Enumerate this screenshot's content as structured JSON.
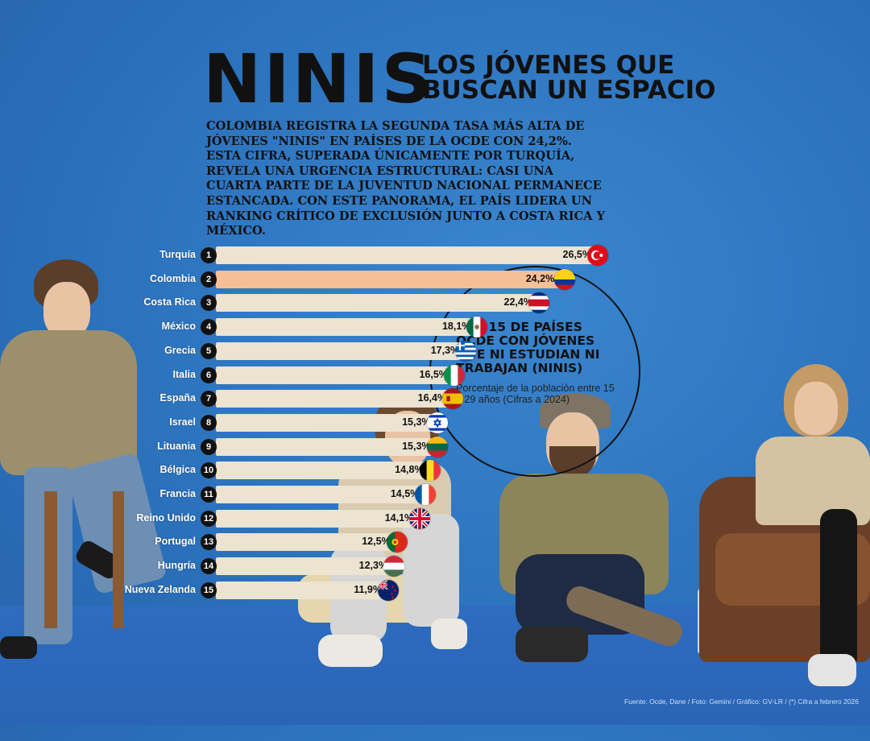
{
  "header": {
    "title": "NINIS",
    "subtitle": "LOS JÓVENES QUE\nBUSCAN UN ESPACIO",
    "intro": "COLOMBIA REGISTRA LA SEGUNDA TASA MÁS ALTA DE JÓVENES \"NINIS\" EN PAÍSES DE LA OCDE CON 24,2%. ESTA CIFRA, SUPERADA ÚNICAMENTE POR TURQUÍA, REVELA UNA URGENCIA ESTRUCTURAL: CASI UNA CUARTA PARTE DE LA JUVENTUD NACIONAL PERMANECE ESTANCADA. CON ESTE PANORAMA, EL PAÍS LIDERA UN RANKING CRÍTICO DE EXCLUSIÓN JUNTO A COSTA RICA Y MÉXICO."
  },
  "callout": {
    "title": "TOP 15 DE PAÍSES OCDE CON JÓVENES QUE NI ESTUDIAN NI TRABAJAN (NINIS)",
    "subtitle": "Porcentaje de la población entre 15 a 29 años (Cifras a 2024)"
  },
  "footer": "Fuente: Ocde, Dane / Foto: Gemini / Gráfico: GV-LR / (*) Cifra a febrero 2026",
  "colors": {
    "bar": "#ece3d0",
    "highlight": "#f7bf96",
    "background": "#2c72bd"
  },
  "chart_data": {
    "type": "bar",
    "orientation": "horizontal",
    "categories": [
      "Turquía",
      "Colombia",
      "Costa Rica",
      "México",
      "Grecia",
      "Italia",
      "España",
      "Israel",
      "Lituania",
      "Bélgica",
      "Francia",
      "Reino Unido",
      "Portugal",
      "Hungría",
      "Nueva Zelanda"
    ],
    "ranks": [
      "1",
      "2",
      "3",
      "4",
      "5",
      "6",
      "7",
      "8",
      "9",
      "10",
      "11",
      "12",
      "13",
      "14",
      "15"
    ],
    "values": [
      26.5,
      24.2,
      22.4,
      18.1,
      17.3,
      16.5,
      16.4,
      15.3,
      15.3,
      14.8,
      14.5,
      14.1,
      12.5,
      12.3,
      11.9
    ],
    "value_labels": [
      "26,5%",
      "24,2%*",
      "22,4%",
      "18,1%",
      "17,3%",
      "16,5%",
      "16,4%",
      "15,3%",
      "15,3%",
      "14,8%",
      "14,5%",
      "14,1%",
      "12,5%",
      "12,3%",
      "11,9%"
    ],
    "highlight": "Colombia",
    "flags": [
      "turkey",
      "colombia",
      "costa-rica",
      "mexico",
      "greece",
      "italy",
      "spain",
      "israel",
      "lithuania",
      "belgium",
      "france",
      "united-kingdom",
      "portugal",
      "hungary",
      "new-zealand"
    ],
    "title": "TOP 15 DE PAÍSES OCDE CON JÓVENES QUE NI ESTUDIAN NI TRABAJAN (NINIS)",
    "xlim": [
      0,
      27
    ],
    "legend": "none",
    "grid": false
  }
}
